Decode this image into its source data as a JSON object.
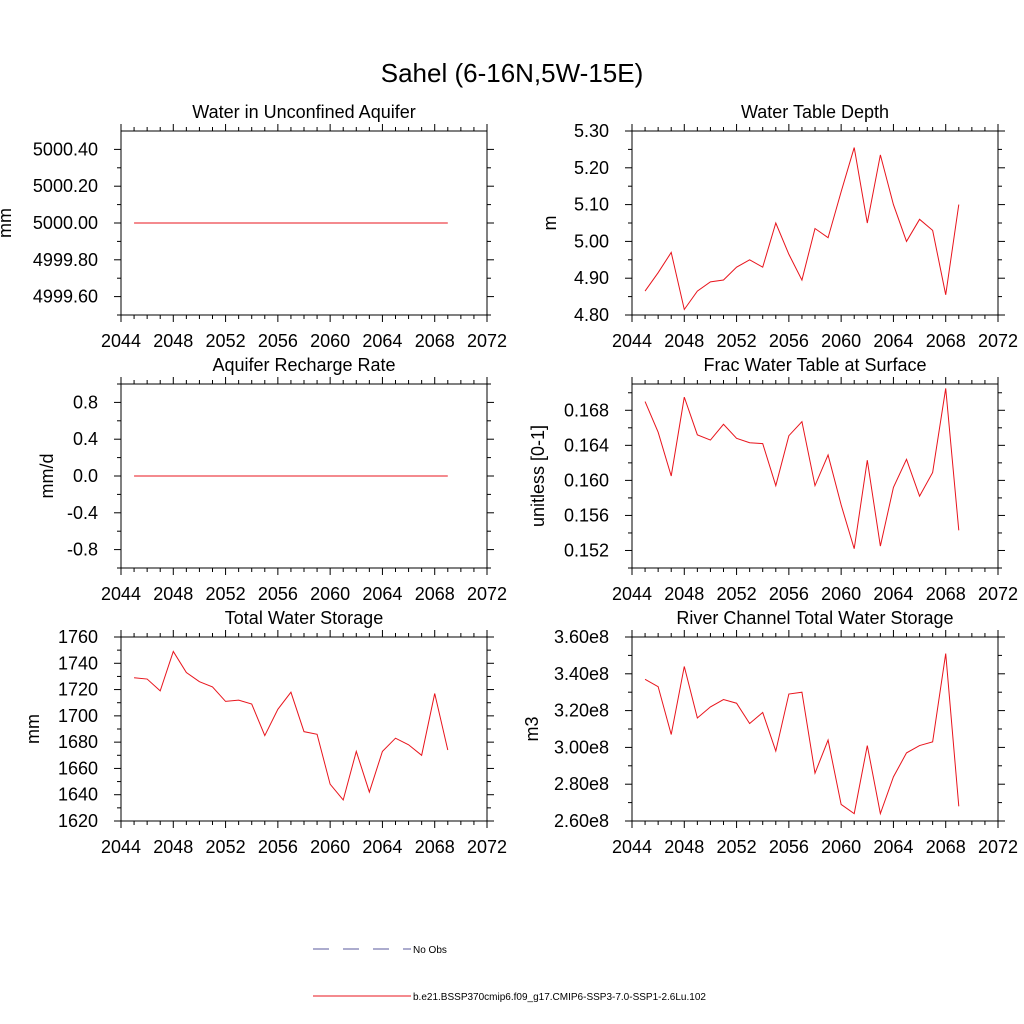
{
  "figure": {
    "title": "Sahel (6-16N,5W-15E)",
    "series_color": "#e8141c",
    "no_obs_color": "#5a5a9c",
    "legend": {
      "no_obs_label": "No Obs",
      "model_label": "b.e21.BSSP370cmip6.f09_g17.CMIP6-SSP3-7.0-SSP1-2.6Lu.102"
    }
  },
  "chart_data": [
    {
      "type": "line",
      "title": "Water in Unconfined Aquifer",
      "xlabel": "",
      "ylabel": "mm",
      "xlim": [
        2044,
        2072
      ],
      "ylim": [
        4999.5,
        5000.5
      ],
      "xticks": [
        2044,
        2048,
        2052,
        2056,
        2060,
        2064,
        2068,
        2072
      ],
      "yticks": [
        4999.6,
        4999.8,
        5000.0,
        5000.2,
        5000.4
      ],
      "ytick_labels": [
        "4999.60",
        "4999.80",
        "5000.00",
        "5000.20",
        "5000.40"
      ],
      "grid": false,
      "x": [
        2045,
        2046,
        2047,
        2048,
        2049,
        2050,
        2051,
        2052,
        2053,
        2054,
        2055,
        2056,
        2057,
        2058,
        2059,
        2060,
        2061,
        2062,
        2063,
        2064,
        2065,
        2066,
        2067,
        2068,
        2069
      ],
      "series": [
        {
          "name": "b.e21.BSSP370cmip6.f09_g17.CMIP6-SSP3-7.0-SSP1-2.6Lu.102",
          "values": [
            5000.0,
            5000.0,
            5000.0,
            5000.0,
            5000.0,
            5000.0,
            5000.0,
            5000.0,
            5000.0,
            5000.0,
            5000.0,
            5000.0,
            5000.0,
            5000.0,
            5000.0,
            5000.0,
            5000.0,
            5000.0,
            5000.0,
            5000.0,
            5000.0,
            5000.0,
            5000.0,
            5000.0,
            5000.0
          ]
        }
      ]
    },
    {
      "type": "line",
      "title": "Water Table Depth",
      "xlabel": "",
      "ylabel": "m",
      "xlim": [
        2044,
        2072
      ],
      "ylim": [
        4.8,
        5.3
      ],
      "xticks": [
        2044,
        2048,
        2052,
        2056,
        2060,
        2064,
        2068,
        2072
      ],
      "yticks": [
        4.8,
        4.9,
        5.0,
        5.1,
        5.2,
        5.3
      ],
      "ytick_labels": [
        "4.80",
        "4.90",
        "5.00",
        "5.10",
        "5.20",
        "5.30"
      ],
      "grid": false,
      "x": [
        2045,
        2046,
        2047,
        2048,
        2049,
        2050,
        2051,
        2052,
        2053,
        2054,
        2055,
        2056,
        2057,
        2058,
        2059,
        2060,
        2061,
        2062,
        2063,
        2064,
        2065,
        2066,
        2067,
        2068,
        2069
      ],
      "series": [
        {
          "name": "b.e21.BSSP370cmip6.f09_g17.CMIP6-SSP3-7.0-SSP1-2.6Lu.102",
          "values": [
            4.865,
            4.915,
            4.97,
            4.815,
            4.865,
            4.89,
            4.895,
            4.93,
            4.95,
            4.93,
            5.05,
            4.965,
            4.895,
            5.035,
            5.01,
            5.135,
            5.255,
            5.05,
            5.235,
            5.1,
            5.0,
            5.06,
            5.03,
            4.855,
            5.1
          ]
        }
      ]
    },
    {
      "type": "line",
      "title": "Aquifer Recharge Rate",
      "xlabel": "",
      "ylabel": "mm/d",
      "xlim": [
        2044,
        2072
      ],
      "ylim": [
        -1.0,
        1.0
      ],
      "xticks": [
        2044,
        2048,
        2052,
        2056,
        2060,
        2064,
        2068,
        2072
      ],
      "yticks": [
        -0.8,
        -0.4,
        0.0,
        0.4,
        0.8
      ],
      "ytick_labels": [
        "-0.8",
        "-0.4",
        "0.0",
        "0.4",
        "0.8"
      ],
      "grid": false,
      "x": [
        2045,
        2046,
        2047,
        2048,
        2049,
        2050,
        2051,
        2052,
        2053,
        2054,
        2055,
        2056,
        2057,
        2058,
        2059,
        2060,
        2061,
        2062,
        2063,
        2064,
        2065,
        2066,
        2067,
        2068,
        2069
      ],
      "series": [
        {
          "name": "b.e21.BSSP370cmip6.f09_g17.CMIP6-SSP3-7.0-SSP1-2.6Lu.102",
          "values": [
            0,
            0,
            0,
            0,
            0,
            0,
            0,
            0,
            0,
            0,
            0,
            0,
            0,
            0,
            0,
            0,
            0,
            0,
            0,
            0,
            0,
            0,
            0,
            0,
            0
          ]
        }
      ]
    },
    {
      "type": "line",
      "title": "Frac Water Table at Surface",
      "xlabel": "",
      "ylabel": "unitless [0-1]",
      "xlim": [
        2044,
        2072
      ],
      "ylim": [
        0.15,
        0.171
      ],
      "xticks": [
        2044,
        2048,
        2052,
        2056,
        2060,
        2064,
        2068,
        2072
      ],
      "yticks": [
        0.152,
        0.156,
        0.16,
        0.164,
        0.168
      ],
      "ytick_labels": [
        "0.152",
        "0.156",
        "0.160",
        "0.164",
        "0.168"
      ],
      "grid": false,
      "x": [
        2045,
        2046,
        2047,
        2048,
        2049,
        2050,
        2051,
        2052,
        2053,
        2054,
        2055,
        2056,
        2057,
        2058,
        2059,
        2060,
        2061,
        2062,
        2063,
        2064,
        2065,
        2066,
        2067,
        2068,
        2069
      ],
      "series": [
        {
          "name": "b.e21.BSSP370cmip6.f09_g17.CMIP6-SSP3-7.0-SSP1-2.6Lu.102",
          "values": [
            0.169,
            0.1655,
            0.1605,
            0.1695,
            0.1652,
            0.1646,
            0.1664,
            0.1648,
            0.1643,
            0.1642,
            0.1594,
            0.1651,
            0.1667,
            0.1594,
            0.1629,
            0.1572,
            0.1522,
            0.1623,
            0.1525,
            0.1592,
            0.1624,
            0.1582,
            0.1609,
            0.1705,
            0.1543
          ]
        }
      ]
    },
    {
      "type": "line",
      "title": "Total Water Storage",
      "xlabel": "",
      "ylabel": "mm",
      "xlim": [
        2044,
        2072
      ],
      "ylim": [
        1620,
        1760
      ],
      "xticks": [
        2044,
        2048,
        2052,
        2056,
        2060,
        2064,
        2068,
        2072
      ],
      "yticks": [
        1620,
        1640,
        1660,
        1680,
        1700,
        1720,
        1740,
        1760
      ],
      "ytick_labels": [
        "1620",
        "1640",
        "1660",
        "1680",
        "1700",
        "1720",
        "1740",
        "1760"
      ],
      "grid": false,
      "x": [
        2045,
        2046,
        2047,
        2048,
        2049,
        2050,
        2051,
        2052,
        2053,
        2054,
        2055,
        2056,
        2057,
        2058,
        2059,
        2060,
        2061,
        2062,
        2063,
        2064,
        2065,
        2066,
        2067,
        2068,
        2069
      ],
      "series": [
        {
          "name": "b.e21.BSSP370cmip6.f09_g17.CMIP6-SSP3-7.0-SSP1-2.6Lu.102",
          "values": [
            1729,
            1728,
            1719,
            1749,
            1733,
            1726,
            1722,
            1711,
            1712,
            1709,
            1685,
            1705,
            1718,
            1688,
            1686,
            1648,
            1636,
            1673,
            1642,
            1673,
            1683,
            1678,
            1670,
            1717,
            1674
          ]
        }
      ]
    },
    {
      "type": "line",
      "title": "River Channel Total Water Storage",
      "xlabel": "",
      "ylabel": "m3",
      "xlim": [
        2044,
        2072
      ],
      "ylim": [
        260000000,
        360000000
      ],
      "xticks": [
        2044,
        2048,
        2052,
        2056,
        2060,
        2064,
        2068,
        2072
      ],
      "yticks": [
        260000000,
        280000000,
        300000000,
        320000000,
        340000000,
        360000000
      ],
      "ytick_labels": [
        "2.60e8",
        "2.80e8",
        "3.00e8",
        "3.20e8",
        "3.40e8",
        "3.60e8"
      ],
      "grid": false,
      "x": [
        2045,
        2046,
        2047,
        2048,
        2049,
        2050,
        2051,
        2052,
        2053,
        2054,
        2055,
        2056,
        2057,
        2058,
        2059,
        2060,
        2061,
        2062,
        2063,
        2064,
        2065,
        2066,
        2067,
        2068,
        2069
      ],
      "series": [
        {
          "name": "b.e21.BSSP370cmip6.f09_g17.CMIP6-SSP3-7.0-SSP1-2.6Lu.102",
          "values": [
            337000000,
            333000000,
            307000000,
            344000000,
            316000000,
            322000000,
            326000000,
            324000000,
            313000000,
            319000000,
            298000000,
            329000000,
            330000000,
            286000000,
            304000000,
            269000000,
            264000000,
            301000000,
            264000000,
            284000000,
            297000000,
            301000000,
            303000000,
            351000000,
            268000000
          ]
        }
      ]
    }
  ]
}
